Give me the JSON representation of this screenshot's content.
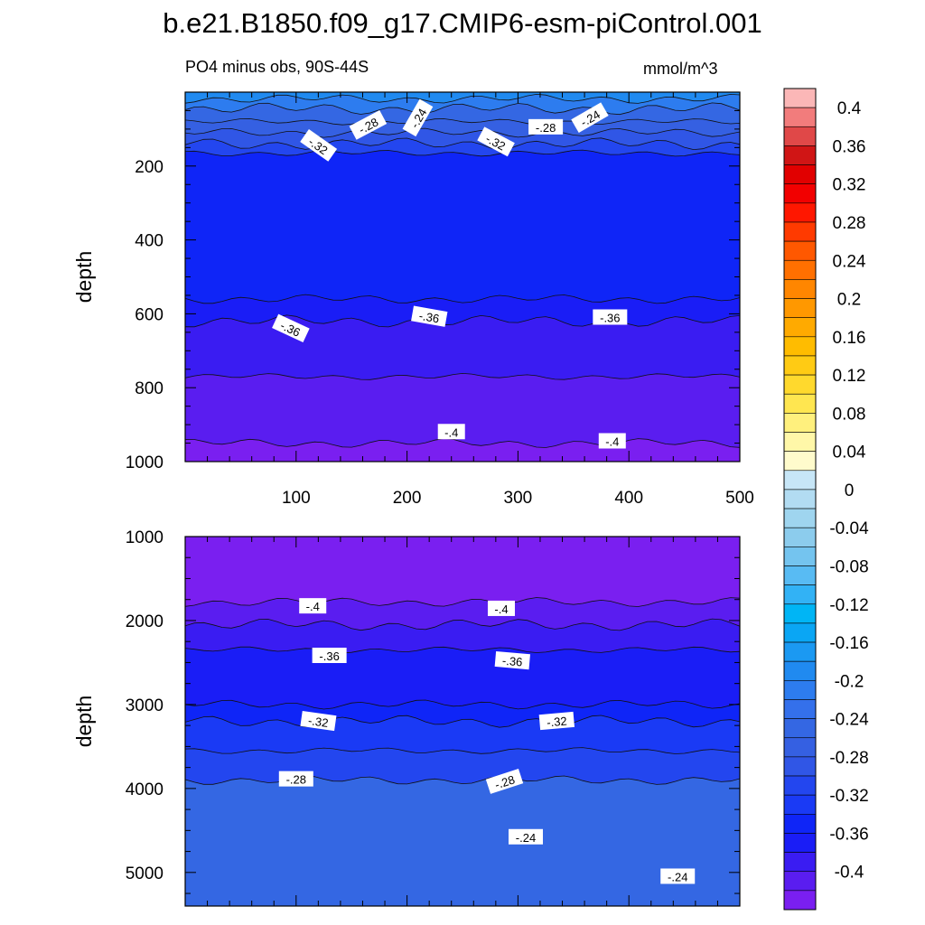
{
  "title": "b.e21.B1850.f09_g17.CMIP6-esm-piControl.001",
  "subtitle_left": "PO4 minus obs, 90S-44S",
  "subtitle_right": "mmol/m^3",
  "chart_data": [
    {
      "type": "heatmap",
      "name": "upper",
      "xlabel": "",
      "ylabel": "depth",
      "xlim": [
        0,
        500
      ],
      "ylim": [
        0,
        1000
      ],
      "y_inverted": true,
      "xticks": [
        100,
        200,
        300,
        400,
        500
      ],
      "yticks": [
        200,
        400,
        600,
        800,
        1000
      ],
      "bands": [
        {
          "top": 0,
          "bottom": 18,
          "level": -0.18
        },
        {
          "top": 18,
          "bottom": 45,
          "level": -0.2
        },
        {
          "top": 45,
          "bottom": 80,
          "level": -0.24
        },
        {
          "top": 80,
          "bottom": 110,
          "level": -0.26
        },
        {
          "top": 110,
          "bottom": 140,
          "level": -0.28
        },
        {
          "top": 140,
          "bottom": 165,
          "level": -0.3
        },
        {
          "top": 165,
          "bottom": 560,
          "level": -0.34
        },
        {
          "top": 560,
          "bottom": 620,
          "level": -0.36
        },
        {
          "top": 620,
          "bottom": 770,
          "level": -0.38
        },
        {
          "top": 770,
          "bottom": 950,
          "level": -0.4
        },
        {
          "top": 950,
          "bottom": 1000,
          "level": -0.42
        }
      ],
      "contour_labels": [
        {
          "x": 165,
          "y": 90,
          "text": "-.28",
          "angle": -28
        },
        {
          "x": 210,
          "y": 70,
          "text": "-.24",
          "angle": -60
        },
        {
          "x": 120,
          "y": 145,
          "text": "-.32",
          "angle": 35
        },
        {
          "x": 280,
          "y": 135,
          "text": "-.32",
          "angle": 28
        },
        {
          "x": 325,
          "y": 95,
          "text": "-.28",
          "angle": 0
        },
        {
          "x": 365,
          "y": 70,
          "text": "-.24",
          "angle": -30
        },
        {
          "x": 95,
          "y": 640,
          "text": "-.36",
          "angle": 25
        },
        {
          "x": 220,
          "y": 608,
          "text": "-.36",
          "angle": 10
        },
        {
          "x": 383,
          "y": 610,
          "text": "-.36",
          "angle": 0
        },
        {
          "x": 240,
          "y": 920,
          "text": "-.4",
          "angle": 0
        },
        {
          "x": 385,
          "y": 945,
          "text": "-.4",
          "angle": 0
        }
      ]
    },
    {
      "type": "heatmap",
      "name": "lower",
      "xlabel": "",
      "ylabel": "depth",
      "xlim": [
        0,
        500
      ],
      "ylim": [
        1000,
        5400
      ],
      "y_inverted": true,
      "xticks": [
        100,
        200,
        300,
        400,
        500
      ],
      "yticks": [
        1000,
        2000,
        3000,
        4000,
        5000
      ],
      "bands": [
        {
          "top": 1000,
          "bottom": 1780,
          "level": -0.41
        },
        {
          "top": 1780,
          "bottom": 2050,
          "level": -0.39
        },
        {
          "top": 2050,
          "bottom": 2350,
          "level": -0.37
        },
        {
          "top": 2350,
          "bottom": 3000,
          "level": -0.35
        },
        {
          "top": 3000,
          "bottom": 3200,
          "level": -0.33
        },
        {
          "top": 3200,
          "bottom": 3550,
          "level": -0.31
        },
        {
          "top": 3550,
          "bottom": 3900,
          "level": -0.29
        },
        {
          "top": 3900,
          "bottom": 5400,
          "level": -0.25
        }
      ],
      "contour_labels": [
        {
          "x": 115,
          "y": 1830,
          "text": "-.4",
          "angle": 0
        },
        {
          "x": 285,
          "y": 1860,
          "text": "-.4",
          "angle": 0
        },
        {
          "x": 130,
          "y": 2420,
          "text": "-.36",
          "angle": 0
        },
        {
          "x": 295,
          "y": 2480,
          "text": "-.36",
          "angle": 5
        },
        {
          "x": 120,
          "y": 3200,
          "text": "-.32",
          "angle": 8
        },
        {
          "x": 335,
          "y": 3200,
          "text": "-.32",
          "angle": -5
        },
        {
          "x": 100,
          "y": 3890,
          "text": "-.28",
          "angle": 0
        },
        {
          "x": 288,
          "y": 3920,
          "text": "-.28",
          "angle": -18
        },
        {
          "x": 307,
          "y": 4580,
          "text": "-.24",
          "angle": 0
        },
        {
          "x": 444,
          "y": 5050,
          "text": "-.24",
          "angle": 0
        }
      ]
    }
  ],
  "colorbar": {
    "labels": [
      "0.4",
      "0.36",
      "0.32",
      "0.28",
      "0.24",
      "0.2",
      "0.16",
      "0.12",
      "0.08",
      "0.04",
      "0",
      "-0.04",
      "-0.08",
      "-0.12",
      "-0.16",
      "-0.2",
      "-0.24",
      "-0.28",
      "-0.32",
      "-0.36",
      "-0.4"
    ],
    "colors": [
      "#fbb7b7",
      "#f27c7c",
      "#e04848",
      "#d01515",
      "#e10000",
      "#f20000",
      "#ff1700",
      "#ff3a00",
      "#ff5800",
      "#ff7000",
      "#ff8600",
      "#ff9800",
      "#ffaa00",
      "#ffbc00",
      "#ffcb14",
      "#ffd92d",
      "#ffe650",
      "#fff07d",
      "#fff7a8",
      "#fffbcc",
      "#c7e6f7",
      "#b2dcf2",
      "#9fd5ef",
      "#8ccced",
      "#74c4ef",
      "#58bbf3",
      "#32b2f5",
      "#00b5f5",
      "#0aa6f4",
      "#1b99f2",
      "#208af0",
      "#2d7cef",
      "#3470eb",
      "#3467e3",
      "#3560e2",
      "#3056e6",
      "#2346ef",
      "#1a3af5",
      "#0f25f7",
      "#1a1df6",
      "#3a1cf2",
      "#5a1df0",
      "#7a1ff0"
    ]
  }
}
